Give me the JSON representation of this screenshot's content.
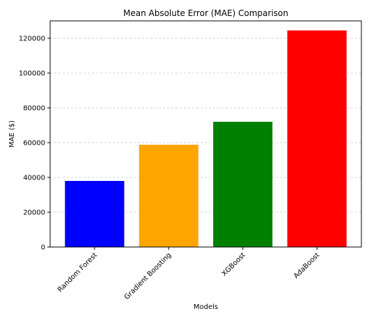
{
  "chart_data": {
    "type": "bar",
    "title": "Mean Absolute Error (MAE) Comparison",
    "xlabel": "Models",
    "ylabel": "MAE ($)",
    "categories": [
      "Random Forest",
      "Gradient Boosting",
      "XGBoost",
      "AdaBoost"
    ],
    "values": [
      38000,
      58800,
      72000,
      124500
    ],
    "colors": [
      "#0000ff",
      "#ffa500",
      "#008000",
      "#ff0000"
    ],
    "ylim": [
      0,
      130000
    ],
    "yticks": [
      0,
      20000,
      40000,
      60000,
      80000,
      100000,
      120000
    ],
    "grid": "y-axis dashed",
    "x_tick_rotation": "45 degrees"
  }
}
